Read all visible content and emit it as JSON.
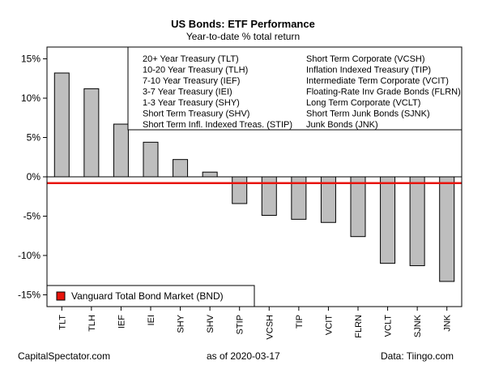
{
  "chart_data": {
    "type": "bar",
    "title": "US Bonds: ETF Performance",
    "subtitle": "Year-to-date % total return",
    "ylabel": "",
    "xlabel": "",
    "ylim": [
      -16.5,
      16.5
    ],
    "yticks": [
      15,
      10,
      5,
      0,
      -5,
      -10,
      -15
    ],
    "ytick_labels": [
      "15%",
      "10%",
      "5%",
      "0%",
      "-5%",
      "-10%",
      "-15%"
    ],
    "categories": [
      "TLT",
      "TLH",
      "IEF",
      "IEI",
      "SHY",
      "SHV",
      "STIP",
      "VCSH",
      "TIP",
      "VCIT",
      "FLRN",
      "VCLT",
      "SJNK",
      "JNK"
    ],
    "values": [
      13.2,
      11.2,
      6.7,
      4.4,
      2.2,
      0.6,
      -3.4,
      -4.9,
      -5.4,
      -5.8,
      -7.6,
      -11.0,
      -11.3,
      -13.3
    ],
    "reference_line": {
      "label": "Vanguard Total Bond Market (BND)",
      "value": -0.8,
      "color": "#e8140c"
    },
    "bar_color": "#bebebe",
    "legend_left": [
      "20+ Year Treasury (TLT)",
      "10-20 Year Treasury (TLH)",
      "7-10 Year Treasury (IEF)",
      "3-7 Year Treasury (IEI)",
      "1-3 Year Treasury (SHY)",
      "Short Term Treasury (SHV)",
      "Short Term Infl. Indexed Treas. (STIP)"
    ],
    "legend_right": [
      "Short Term Corporate (VCSH)",
      "Inflation Indexed Treasury (TIP)",
      "Intermediate Term Corporate (VCIT)",
      "Floating-Rate Inv Grade Bonds (FLRN)",
      "Long Term Corporate (VCLT)",
      "Short Term Junk Bonds (SJNK)",
      "Junk Bonds (JNK)"
    ]
  },
  "footer": {
    "left": "CapitalSpectator.com",
    "middle": "as of   2020-03-17",
    "right": "Data: Tiingo.com"
  }
}
